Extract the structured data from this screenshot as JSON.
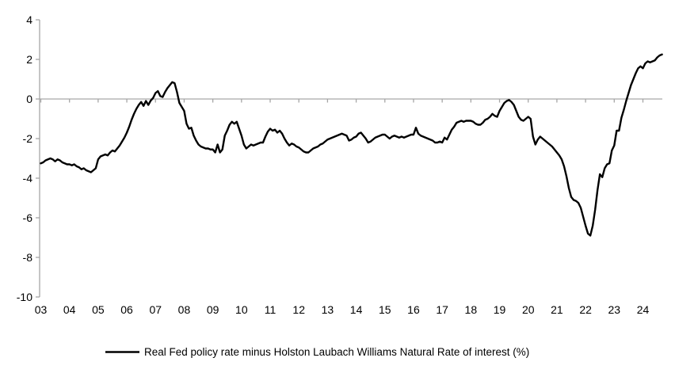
{
  "chart_data": {
    "type": "line",
    "title": "",
    "xlabel": "",
    "ylabel": "",
    "ylim": [
      -10,
      4
    ],
    "y_tick_values": [
      4,
      2,
      0,
      -2,
      -4,
      -6,
      -8,
      -10
    ],
    "y_tick_labels": [
      "4",
      "2",
      "0",
      "-2",
      "-4",
      "-6",
      "-8",
      "-10"
    ],
    "x_tick_labels": [
      "03",
      "04",
      "05",
      "06",
      "07",
      "08",
      "09",
      "10",
      "11",
      "12",
      "13",
      "14",
      "15",
      "16",
      "17",
      "18",
      "19",
      "20",
      "21",
      "22",
      "23",
      "24"
    ],
    "x_start_year": 2003,
    "x_step_years": 0.0833333,
    "grid": false,
    "zero_line": true,
    "legend_position": "bottom-center",
    "axis_color": "#a6a6a6",
    "line_color": "#000000",
    "text_color": "#000000",
    "series": [
      {
        "name": "Real Fed policy rate minus Holston Laubach Williams Natural Rate of interest (%)",
        "color": "#000000",
        "values": [
          -3.25,
          -3.2,
          -3.1,
          -3.05,
          -3.0,
          -3.05,
          -3.15,
          -3.05,
          -3.1,
          -3.2,
          -3.25,
          -3.3,
          -3.3,
          -3.35,
          -3.3,
          -3.4,
          -3.45,
          -3.55,
          -3.5,
          -3.6,
          -3.65,
          -3.7,
          -3.6,
          -3.5,
          -3.05,
          -2.9,
          -2.85,
          -2.8,
          -2.85,
          -2.7,
          -2.6,
          -2.65,
          -2.5,
          -2.35,
          -2.15,
          -1.95,
          -1.7,
          -1.4,
          -1.05,
          -0.75,
          -0.5,
          -0.3,
          -0.15,
          -0.35,
          -0.1,
          -0.3,
          -0.08,
          0.05,
          0.3,
          0.4,
          0.15,
          0.1,
          0.35,
          0.55,
          0.7,
          0.85,
          0.8,
          0.35,
          -0.2,
          -0.4,
          -0.6,
          -1.25,
          -1.5,
          -1.45,
          -1.85,
          -2.1,
          -2.3,
          -2.4,
          -2.45,
          -2.5,
          -2.5,
          -2.55,
          -2.55,
          -2.7,
          -2.3,
          -2.7,
          -2.55,
          -1.85,
          -1.6,
          -1.3,
          -1.15,
          -1.25,
          -1.15,
          -1.5,
          -1.85,
          -2.3,
          -2.5,
          -2.4,
          -2.3,
          -2.35,
          -2.3,
          -2.25,
          -2.2,
          -2.2,
          -1.9,
          -1.65,
          -1.5,
          -1.6,
          -1.55,
          -1.7,
          -1.6,
          -1.75,
          -2.0,
          -2.2,
          -2.35,
          -2.25,
          -2.3,
          -2.4,
          -2.45,
          -2.55,
          -2.65,
          -2.7,
          -2.7,
          -2.6,
          -2.5,
          -2.45,
          -2.4,
          -2.3,
          -2.25,
          -2.15,
          -2.05,
          -2.0,
          -1.95,
          -1.9,
          -1.85,
          -1.8,
          -1.75,
          -1.8,
          -1.85,
          -2.1,
          -2.05,
          -1.95,
          -1.9,
          -1.75,
          -1.7,
          -1.85,
          -2.0,
          -2.2,
          -2.15,
          -2.05,
          -1.95,
          -1.9,
          -1.85,
          -1.8,
          -1.8,
          -1.9,
          -2.0,
          -1.9,
          -1.85,
          -1.9,
          -1.95,
          -1.9,
          -1.95,
          -1.9,
          -1.85,
          -1.8,
          -1.8,
          -1.45,
          -1.75,
          -1.85,
          -1.9,
          -1.95,
          -2.0,
          -2.05,
          -2.1,
          -2.2,
          -2.2,
          -2.15,
          -2.2,
          -1.95,
          -2.05,
          -1.8,
          -1.55,
          -1.4,
          -1.2,
          -1.15,
          -1.1,
          -1.15,
          -1.1,
          -1.1,
          -1.1,
          -1.15,
          -1.25,
          -1.3,
          -1.3,
          -1.2,
          -1.05,
          -1.0,
          -0.9,
          -0.75,
          -0.85,
          -0.9,
          -0.6,
          -0.4,
          -0.2,
          -0.1,
          -0.05,
          -0.15,
          -0.3,
          -0.6,
          -0.9,
          -1.05,
          -1.1,
          -1.0,
          -0.9,
          -1.0,
          -1.9,
          -2.3,
          -2.05,
          -1.9,
          -2.0,
          -2.1,
          -2.2,
          -2.3,
          -2.4,
          -2.55,
          -2.7,
          -2.85,
          -3.05,
          -3.4,
          -3.9,
          -4.5,
          -4.95,
          -5.1,
          -5.15,
          -5.25,
          -5.5,
          -5.95,
          -6.4,
          -6.8,
          -6.9,
          -6.4,
          -5.6,
          -4.6,
          -3.8,
          -3.95,
          -3.5,
          -3.3,
          -3.25,
          -2.6,
          -2.35,
          -1.6,
          -1.6,
          -0.95,
          -0.55,
          -0.1,
          0.3,
          0.7,
          1.0,
          1.3,
          1.55,
          1.65,
          1.55,
          1.8,
          1.9,
          1.85,
          1.9,
          1.95,
          2.1,
          2.2,
          2.25
        ]
      }
    ]
  }
}
